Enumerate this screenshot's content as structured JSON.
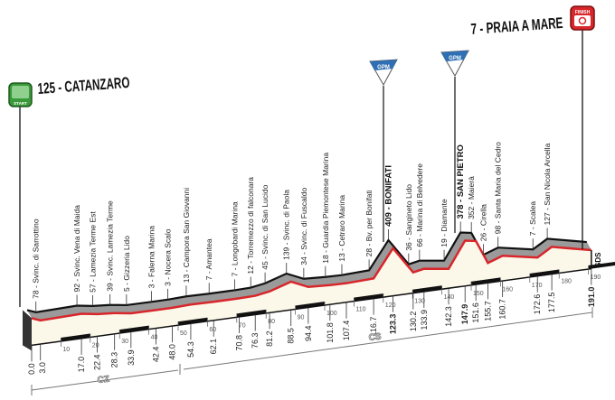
{
  "start": {
    "label": "125 - CATANZARO",
    "badge": "START",
    "color": "#3a9a3a"
  },
  "finish": {
    "label": "7 - PRAIA A MARE",
    "badge": "FINISH",
    "color": "#d8262b"
  },
  "gpm_badge": "GPM",
  "sds_label": "SDS",
  "provinces": [
    {
      "label": "CZ"
    },
    {
      "label": "CS"
    }
  ],
  "axis_ticks": [
    10,
    20,
    30,
    40,
    50,
    60,
    70,
    80,
    90,
    100,
    110,
    120,
    130,
    140,
    150,
    160,
    170,
    180,
    190
  ],
  "profile": [
    {
      "km": "0.0",
      "elev": 125,
      "name": "CATANZARO",
      "type": "start"
    },
    {
      "km": "3.0",
      "elev": 78,
      "name": "Svinc. di Sarrottino"
    },
    {
      "km": "17.0",
      "elev": 92,
      "name": "Svinc. Vena di Maida"
    },
    {
      "km": "22.4",
      "elev": 57,
      "name": "Lamezia Terme Est"
    },
    {
      "km": "28.3",
      "elev": 39,
      "name": "Svinc. Lamezia Terme"
    },
    {
      "km": "33.9",
      "elev": 5,
      "name": "Gizzeria Lido"
    },
    {
      "km": "42.4",
      "elev": 3,
      "name": "Falerna Marina"
    },
    {
      "km": "48.0",
      "elev": 3,
      "name": "Nocera Scalo"
    },
    {
      "km": "54.3",
      "elev": 13,
      "name": "Campora San Giovanni"
    },
    {
      "km": "62.1",
      "elev": 7,
      "name": "Amantea"
    },
    {
      "km": "70.8",
      "elev": 7,
      "name": "Longobardi Marina"
    },
    {
      "km": "76.3",
      "elev": 12,
      "name": "Torremezzo di falconara"
    },
    {
      "km": "81.2",
      "elev": 45,
      "name": "Svinc. di San Lucido"
    },
    {
      "km": "88.5",
      "elev": 139,
      "name": "Svinc. di Paola"
    },
    {
      "km": "94.4",
      "elev": 34,
      "name": "Svinc. di Fuscaldo"
    },
    {
      "km": "101.8",
      "elev": 18,
      "name": "Guardia Piemontese Marina"
    },
    {
      "km": "107.4",
      "elev": 13,
      "name": "Cetraro Marina"
    },
    {
      "km": "116.7",
      "elev": 28,
      "name": "Bv. per Bonifati"
    },
    {
      "km": "123.3",
      "elev": 409,
      "name": "BONIFATI",
      "type": "gpm"
    },
    {
      "km": "130.2",
      "elev": 36,
      "name": "Sangineto Lido"
    },
    {
      "km": "133.9",
      "elev": 66,
      "name": "Marina di Belvedere"
    },
    {
      "km": "142.3",
      "elev": 19,
      "name": "Diamante"
    },
    {
      "km": "147.9",
      "elev": 378,
      "name": "SAN PIETRO",
      "type": "gpm"
    },
    {
      "km": "151.6",
      "elev": 352,
      "name": "Maierà"
    },
    {
      "km": "155.7",
      "elev": 26,
      "name": "Cirella"
    },
    {
      "km": "160.7",
      "elev": 98,
      "name": "Santa Maria del Cedro"
    },
    {
      "km": "172.6",
      "elev": 7,
      "name": "Scalea"
    },
    {
      "km": "177.5",
      "elev": 127,
      "name": "San Nicola Arcella"
    },
    {
      "km": "191.0",
      "elev": 7,
      "name": "PRAIA A MARE",
      "type": "finish"
    }
  ],
  "colors": {
    "profile_line": "#d8262b",
    "top_surface": "#9a9a9a",
    "front_face": "#fbf8ea",
    "gpm": "#2f6fb3"
  }
}
